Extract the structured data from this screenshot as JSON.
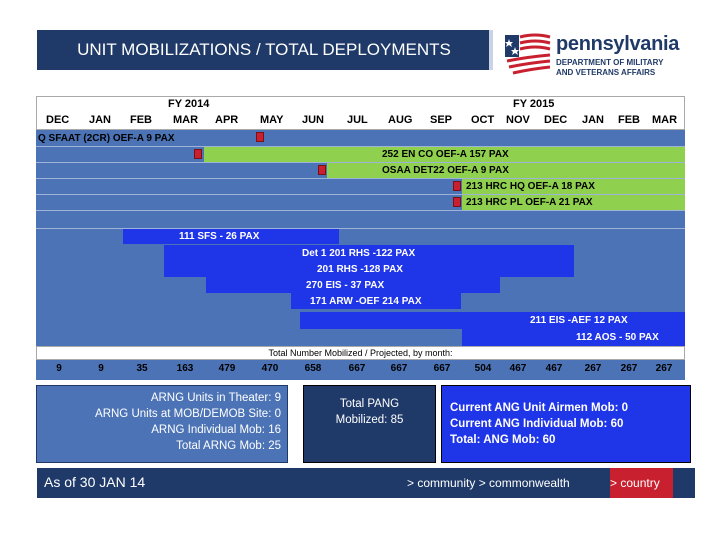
{
  "title": "UNIT MOBILIZATIONS / TOTAL DEPLOYMENTS",
  "logo": {
    "name": "pennsylvania",
    "line1": "DEPARTMENT OF MILITARY",
    "line2": "AND VETERANS AFFAIRS"
  },
  "gantt": {
    "fy1": "FY 2014",
    "fy2": "FY 2015",
    "months": [
      "DEC",
      "JAN",
      "FEB",
      "MAR",
      "APR",
      "MAY",
      "JUN",
      "JUL",
      "AUG",
      "SEP",
      "OCT",
      "NOV",
      "DEC",
      "JAN",
      "FEB",
      "MAR"
    ],
    "bars": [
      {
        "label": "Q SFAAT (2CR)   OEF-A      9 PAX",
        "color": "#4b73b5"
      },
      {
        "label": "252 EN CO   OEF-A  157 PAX",
        "color": "#8fd14f"
      },
      {
        "label": "OSAA DET22   OEF-A  9 PAX",
        "color": "#8fd14f"
      },
      {
        "label": "213 HRC HQ OEF-A 18 PAX",
        "color": "#8fd14f"
      },
      {
        "label": "213 HRC PL OEF-A 21 PAX",
        "color": "#8fd14f"
      },
      {
        "label": "111 SFS - 26 PAX",
        "color": "#1f35e8"
      },
      {
        "label": "Det 1 201 RHS -122 PAX",
        "color": "#1f35e8"
      },
      {
        "label": "201 RHS -128 PAX",
        "color": "#1f35e8"
      },
      {
        "label": "270 EIS - 37 PAX",
        "color": "#1f35e8"
      },
      {
        "label": "171 ARW -OEF 214 PAX",
        "color": "#1f35e8"
      },
      {
        "label": "211 EIS -AEF 12 PAX",
        "color": "#1f35e8"
      },
      {
        "label": "112 AOS - 50 PAX",
        "color": "#1f35e8"
      }
    ]
  },
  "totals": {
    "label": "Total Number Mobilized / Projected,  by month:",
    "values": [
      "9",
      "9",
      "35",
      "163",
      "479",
      "470",
      "658",
      "667",
      "667",
      "667",
      "504",
      "467",
      "467",
      "267",
      "267",
      "267"
    ]
  },
  "arng": {
    "line1": "ARNG Units in Theater: 9",
    "line2": "ARNG Units at MOB/DEMOB Site: 0",
    "line3": "ARNG Individual Mob: 16",
    "line4": "Total ARNG Mob: 25"
  },
  "pang": {
    "line1": "Total PANG",
    "line2": "Mobilized: 85"
  },
  "ang": {
    "line1": "Current ANG Unit Airmen Mob: 0",
    "line2": "Current ANG Individual Mob: 60",
    "line3": "Total: ANG Mob: 60"
  },
  "footer": {
    "date": "As of 30 JAN 14",
    "nav": "> community  > commonwealth",
    "country": ">  country"
  },
  "colors": {
    "navy": "#1f3a68",
    "blue": "#4b73b5",
    "green": "#8fd14f",
    "bright_blue": "#1f35e8",
    "red": "#c8202f"
  }
}
